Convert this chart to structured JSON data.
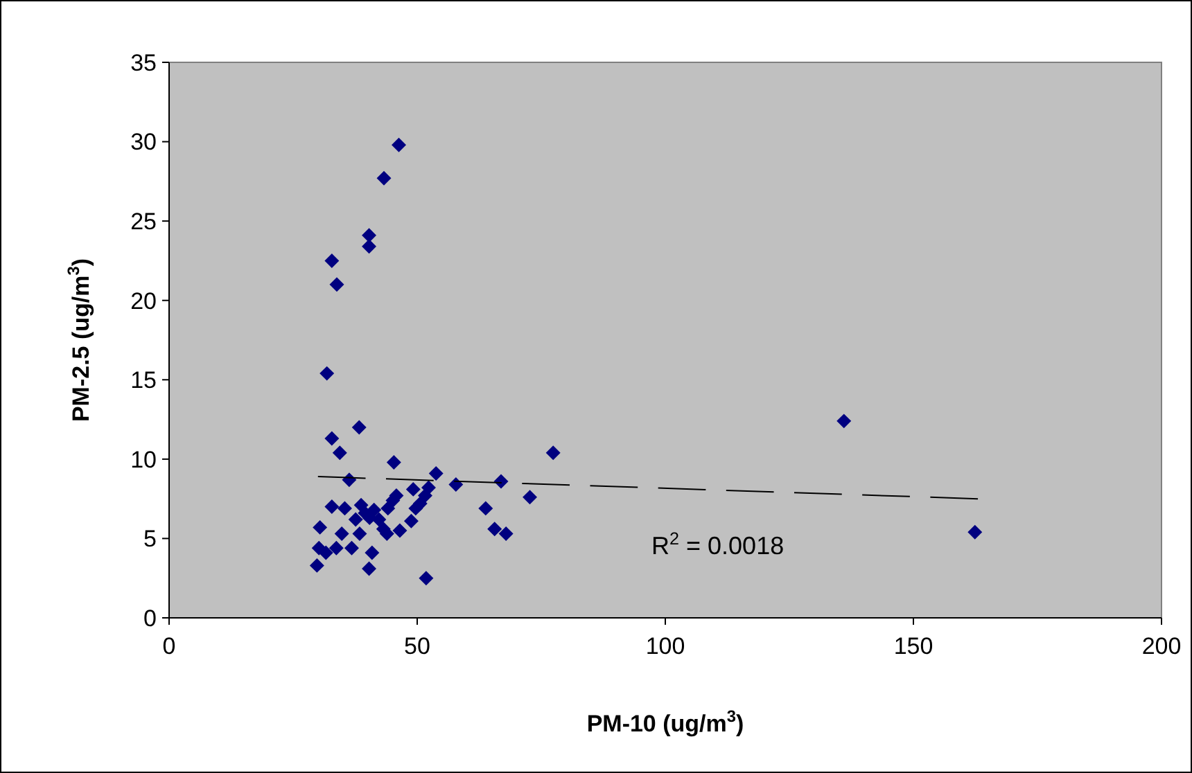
{
  "chart_data": {
    "type": "scatter",
    "xlabel": "PM-10 (ug/m$^{3}$)",
    "ylabel": "PM-2.5 (ug/m$^{3}$)",
    "xlim": [
      0,
      200
    ],
    "xticks": [
      0,
      50,
      100,
      150,
      200
    ],
    "ylim": [
      0,
      35
    ],
    "yticks": [
      0,
      5,
      10,
      15,
      20,
      25,
      30,
      35
    ],
    "grid": false,
    "marker": "diamond",
    "annotations": [
      "R$^{2}$ = 0.0018"
    ],
    "series": [
      {
        "color": "#000080",
        "x": [
          46.3,
          43.3,
          40.3,
          40.3,
          32.8,
          33.8,
          31.8,
          38.3,
          32.8,
          34.4,
          45.3,
          77.4,
          36.3,
          53.8,
          57.8,
          66.9,
          72.7,
          63.8,
          65.6,
          67.9,
          51.8,
          32.8,
          35.4,
          38.7,
          30.4,
          34.8,
          38.4,
          30.2,
          31.6,
          33.7,
          36.8,
          40.9,
          29.8,
          40.3,
          37.6,
          39.5,
          41.3,
          42.3,
          43.2,
          43.9,
          46.5,
          48.8,
          49.7,
          50.6,
          51.6,
          52.3,
          49.2,
          45.8,
          45.1,
          44.1,
          40.4,
          162.4,
          136
        ],
        "values": [
          29.8,
          27.7,
          24.1,
          23.4,
          22.5,
          21.0,
          15.4,
          12.0,
          11.3,
          10.4,
          9.8,
          10.4,
          8.7,
          9.1,
          8.4,
          8.6,
          7.6,
          6.9,
          5.6,
          5.3,
          2.5,
          7.0,
          6.9,
          7.1,
          5.7,
          5.3,
          5.3,
          4.4,
          4.1,
          4.4,
          4.4,
          4.1,
          3.3,
          3.1,
          6.2,
          6.6,
          6.8,
          6.2,
          5.6,
          5.3,
          5.5,
          6.1,
          6.9,
          7.2,
          7.7,
          8.2,
          8.1,
          7.7,
          7.4,
          6.9,
          6.3,
          5.4,
          12.4
        ]
      },
      {
        "type": "line",
        "color": "#000000",
        "marker": "none",
        "line_style": "dashed",
        "x": [
          30,
          163
        ],
        "values": [
          8.9,
          7.5
        ]
      }
    ]
  }
}
